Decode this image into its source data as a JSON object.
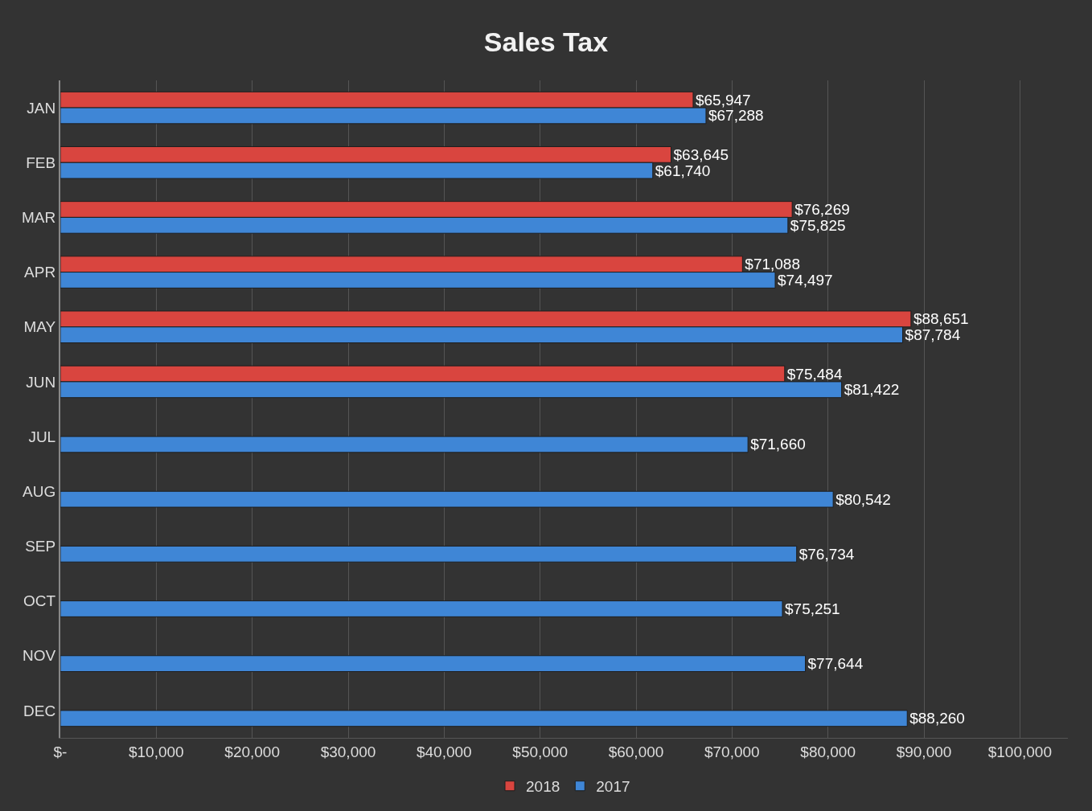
{
  "chart_data": {
    "type": "bar",
    "orientation": "horizontal",
    "title": "Sales Tax",
    "categories": [
      "JAN",
      "FEB",
      "MAR",
      "APR",
      "MAY",
      "JUN",
      "JUL",
      "AUG",
      "SEP",
      "OCT",
      "NOV",
      "DEC"
    ],
    "series": [
      {
        "name": "2018",
        "color": "#d9453f",
        "values": [
          65947,
          63645,
          76269,
          71088,
          88651,
          75484,
          null,
          null,
          null,
          null,
          null,
          null
        ],
        "value_labels": [
          "$65,947",
          "$63,645",
          "$76,269",
          "$71,088",
          "$88,651",
          "$75,484",
          null,
          null,
          null,
          null,
          null,
          null
        ]
      },
      {
        "name": "2017",
        "color": "#3f86d6",
        "values": [
          67288,
          61740,
          75825,
          74497,
          87784,
          81422,
          71660,
          80542,
          76734,
          75251,
          77644,
          88260
        ],
        "value_labels": [
          "$67,288",
          "$61,740",
          "$75,825",
          "$74,497",
          "$87,784",
          "$81,422",
          "$71,660",
          "$80,542",
          "$76,734",
          "$75,251",
          "$77,644",
          "$88,260"
        ]
      }
    ],
    "xlim": [
      0,
      105000
    ],
    "xticks": [
      {
        "value": 0,
        "label": "$-"
      },
      {
        "value": 10000,
        "label": "$10,000"
      },
      {
        "value": 20000,
        "label": "$20,000"
      },
      {
        "value": 30000,
        "label": "$30,000"
      },
      {
        "value": 40000,
        "label": "$40,000"
      },
      {
        "value": 50000,
        "label": "$50,000"
      },
      {
        "value": 60000,
        "label": "$60,000"
      },
      {
        "value": 70000,
        "label": "$70,000"
      },
      {
        "value": 80000,
        "label": "$80,000"
      },
      {
        "value": 90000,
        "label": "$90,000"
      },
      {
        "value": 100000,
        "label": "$100,000"
      }
    ],
    "grid": "x",
    "legend": "bottom"
  }
}
